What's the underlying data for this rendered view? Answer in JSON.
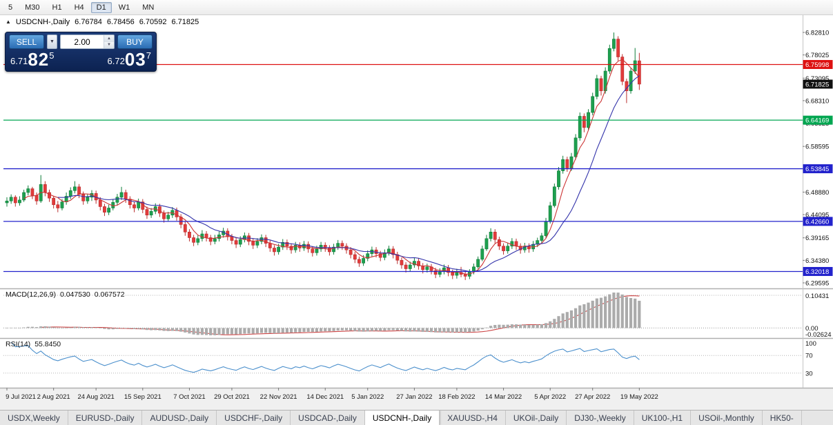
{
  "toolbar": {
    "timeframes": [
      {
        "label": "5"
      },
      {
        "label": "M30"
      },
      {
        "label": "H1"
      },
      {
        "label": "H4"
      },
      {
        "label": "D1"
      },
      {
        "label": "W1"
      },
      {
        "label": "MN"
      }
    ],
    "active": "D1"
  },
  "icons": {
    "collapse": "▲",
    "dropdown": "▼",
    "spin_up": "▲",
    "spin_down": "▼"
  },
  "chart": {
    "symbol_header": "USDCNH-,Daily",
    "ohlc": {
      "open": "6.76784",
      "high": "6.78456",
      "low": "6.70592",
      "close": "6.71825"
    },
    "scale_top": 6.8281,
    "scale_bottom": 6.29595,
    "price_axis": [
      "6.82810",
      "6.78025",
      "6.73095",
      "6.68310",
      "6.63525",
      "6.58595",
      "6.53810",
      "6.48880",
      "6.44095",
      "6.39165",
      "6.34380",
      "6.29595"
    ],
    "lines": [
      {
        "price": 6.75998,
        "label": "6.75998",
        "color": "#dd1111",
        "draw_line": true
      },
      {
        "price": 6.71825,
        "label": "6.71825",
        "color": "#111111",
        "draw_line": false
      },
      {
        "price": 6.64169,
        "label": "6.64169",
        "color": "#00a650",
        "draw_line": true
      },
      {
        "price": 6.53845,
        "label": "6.53845",
        "color": "#2222cc",
        "draw_line": true
      },
      {
        "price": 6.4266,
        "label": "6.42660",
        "color": "#2222cc",
        "draw_line": true
      },
      {
        "price": 6.32018,
        "label": "6.32018",
        "color": "#2222cc",
        "draw_line": true
      }
    ],
    "dates": [
      "9 Jul 2021",
      "2 Aug 2021",
      "24 Aug 2021",
      "15 Sep 2021",
      "7 Oct 2021",
      "29 Oct 2021",
      "22 Nov 2021",
      "14 Dec 2021",
      "5 Jan 2022",
      "27 Jan 2022",
      "18 Feb 2022",
      "14 Mar 2022",
      "5 Apr 2022",
      "27 Apr 2022",
      "19 May 2022"
    ]
  },
  "trade_panel": {
    "sell_label": "SELL",
    "buy_label": "BUY",
    "volume": "2.00",
    "sell_price": {
      "prefix": "6.71",
      "big": "82",
      "sup": "5"
    },
    "buy_price": {
      "prefix": "6.72",
      "big": "03",
      "sup": "7"
    }
  },
  "indicators": {
    "macd": {
      "label": "MACD(12,26,9)",
      "value1": "0.047530",
      "value2": "0.067572",
      "axis": [
        "0.10431",
        "0.00",
        "-0.02624"
      ],
      "max": 0.104313,
      "min": -0.026249
    },
    "rsi": {
      "label": "RSI(14)",
      "value": "55.8450",
      "axis": [
        "100",
        "70",
        "30"
      ],
      "levels": [
        70,
        30
      ]
    }
  },
  "tabs": [
    {
      "label": "USDX,Weekly"
    },
    {
      "label": "EURUSD-,Daily"
    },
    {
      "label": "AUDUSD-,Daily"
    },
    {
      "label": "USDCHF-,Daily"
    },
    {
      "label": "USDCAD-,Daily"
    },
    {
      "label": "USDCNH-,Daily",
      "active": true
    },
    {
      "label": "XAUUSD-,H4"
    },
    {
      "label": "UKOil-,Daily"
    },
    {
      "label": "DJ30-,Weekly"
    },
    {
      "label": "UK100-,H1"
    },
    {
      "label": "USOil-,Monthly"
    },
    {
      "label": "HK50-"
    }
  ],
  "chart_data": {
    "type": "candlestick",
    "symbol": "USDCNH-",
    "timeframe": "Daily",
    "x_labels": [
      "9 Jul 2021",
      "2 Aug 2021",
      "24 Aug 2021",
      "15 Sep 2021",
      "7 Oct 2021",
      "29 Oct 2021",
      "22 Nov 2021",
      "14 Dec 2021",
      "5 Jan 2022",
      "27 Jan 2022",
      "18 Feb 2022",
      "14 Mar 2022",
      "5 Apr 2022",
      "27 Apr 2022",
      "19 May 2022"
    ],
    "ylim": [
      6.29595,
      6.8281
    ],
    "overlays": [
      {
        "name": "ma-fast",
        "type": "sma",
        "period": 5,
        "color": "#cc3333"
      },
      {
        "name": "ma-slow",
        "type": "sma",
        "period": 13,
        "color": "#3333aa"
      }
    ],
    "candles": [
      [
        6.466,
        6.478,
        6.458,
        6.47
      ],
      [
        6.47,
        6.484,
        6.464,
        6.478
      ],
      [
        6.478,
        6.482,
        6.458,
        6.466
      ],
      [
        6.466,
        6.48,
        6.46,
        6.472
      ],
      [
        6.472,
        6.494,
        6.468,
        6.488
      ],
      [
        6.488,
        6.503,
        6.482,
        6.496
      ],
      [
        6.496,
        6.5,
        6.474,
        6.482
      ],
      [
        6.482,
        6.488,
        6.462,
        6.47
      ],
      [
        6.47,
        6.525,
        6.466,
        6.505
      ],
      [
        6.505,
        6.512,
        6.48,
        6.488
      ],
      [
        6.488,
        6.494,
        6.468,
        6.476
      ],
      [
        6.476,
        6.48,
        6.454,
        6.462
      ],
      [
        6.462,
        6.47,
        6.446,
        6.455
      ],
      [
        6.455,
        6.474,
        6.45,
        6.468
      ],
      [
        6.468,
        6.488,
        6.462,
        6.48
      ],
      [
        6.48,
        6.499,
        6.474,
        6.492
      ],
      [
        6.492,
        6.512,
        6.486,
        6.5
      ],
      [
        6.5,
        6.506,
        6.476,
        6.484
      ],
      [
        6.484,
        6.49,
        6.462,
        6.47
      ],
      [
        6.47,
        6.485,
        6.464,
        6.478
      ],
      [
        6.478,
        6.493,
        6.47,
        6.486
      ],
      [
        6.486,
        6.492,
        6.464,
        6.472
      ],
      [
        6.472,
        6.478,
        6.45,
        6.458
      ],
      [
        6.458,
        6.464,
        6.438,
        6.446
      ],
      [
        6.446,
        6.462,
        6.44,
        6.455
      ],
      [
        6.455,
        6.474,
        6.45,
        6.467
      ],
      [
        6.467,
        6.485,
        6.461,
        6.478
      ],
      [
        6.478,
        6.5,
        6.472,
        6.488
      ],
      [
        6.488,
        6.494,
        6.466,
        6.474
      ],
      [
        6.474,
        6.48,
        6.454,
        6.462
      ],
      [
        6.462,
        6.468,
        6.446,
        6.455
      ],
      [
        6.455,
        6.475,
        6.45,
        6.468
      ],
      [
        6.468,
        6.474,
        6.444,
        6.452
      ],
      [
        6.452,
        6.458,
        6.432,
        6.44
      ],
      [
        6.44,
        6.455,
        6.434,
        6.448
      ],
      [
        6.448,
        6.465,
        6.442,
        6.458
      ],
      [
        6.458,
        6.464,
        6.436,
        6.444
      ],
      [
        6.444,
        6.45,
        6.424,
        6.432
      ],
      [
        6.432,
        6.447,
        6.426,
        6.44
      ],
      [
        6.44,
        6.457,
        6.434,
        6.45
      ],
      [
        6.45,
        6.456,
        6.428,
        6.436
      ],
      [
        6.436,
        6.442,
        6.412,
        6.42
      ],
      [
        6.42,
        6.426,
        6.396,
        6.404
      ],
      [
        6.404,
        6.41,
        6.384,
        6.392
      ],
      [
        6.392,
        6.398,
        6.374,
        6.382
      ],
      [
        6.382,
        6.397,
        6.376,
        6.39
      ],
      [
        6.39,
        6.408,
        6.384,
        6.4
      ],
      [
        6.4,
        6.406,
        6.384,
        6.392
      ],
      [
        6.392,
        6.398,
        6.376,
        6.384
      ],
      [
        6.384,
        6.398,
        6.378,
        6.39
      ],
      [
        6.39,
        6.405,
        6.384,
        6.398
      ],
      [
        6.398,
        6.413,
        6.392,
        6.406
      ],
      [
        6.406,
        6.412,
        6.386,
        6.394
      ],
      [
        6.394,
        6.4,
        6.378,
        6.386
      ],
      [
        6.386,
        6.392,
        6.37,
        6.378
      ],
      [
        6.378,
        6.395,
        6.372,
        6.388
      ],
      [
        6.388,
        6.403,
        6.382,
        6.396
      ],
      [
        6.396,
        6.402,
        6.376,
        6.384
      ],
      [
        6.384,
        6.39,
        6.368,
        6.376
      ],
      [
        6.376,
        6.391,
        6.37,
        6.384
      ],
      [
        6.384,
        6.399,
        6.378,
        6.392
      ],
      [
        6.392,
        6.398,
        6.372,
        6.38
      ],
      [
        6.38,
        6.386,
        6.362,
        6.37
      ],
      [
        6.37,
        6.376,
        6.354,
        6.362
      ],
      [
        6.362,
        6.379,
        6.356,
        6.372
      ],
      [
        6.372,
        6.389,
        6.366,
        6.382
      ],
      [
        6.382,
        6.388,
        6.366,
        6.374
      ],
      [
        6.374,
        6.38,
        6.358,
        6.366
      ],
      [
        6.366,
        6.383,
        6.36,
        6.376
      ],
      [
        6.376,
        6.382,
        6.362,
        6.37
      ],
      [
        6.37,
        6.385,
        6.364,
        6.378
      ],
      [
        6.378,
        6.384,
        6.36,
        6.368
      ],
      [
        6.368,
        6.374,
        6.352,
        6.36
      ],
      [
        6.36,
        6.375,
        6.354,
        6.368
      ],
      [
        6.368,
        6.383,
        6.362,
        6.376
      ],
      [
        6.376,
        6.382,
        6.362,
        6.37
      ],
      [
        6.37,
        6.376,
        6.354,
        6.362
      ],
      [
        6.362,
        6.379,
        6.356,
        6.372
      ],
      [
        6.372,
        6.387,
        6.366,
        6.38
      ],
      [
        6.38,
        6.386,
        6.366,
        6.374
      ],
      [
        6.374,
        6.38,
        6.358,
        6.366
      ],
      [
        6.366,
        6.372,
        6.348,
        6.356
      ],
      [
        6.356,
        6.362,
        6.338,
        6.346
      ],
      [
        6.346,
        6.352,
        6.33,
        6.338
      ],
      [
        6.338,
        6.355,
        6.332,
        6.348
      ],
      [
        6.348,
        6.365,
        6.342,
        6.358
      ],
      [
        6.358,
        6.373,
        6.352,
        6.366
      ],
      [
        6.366,
        6.372,
        6.35,
        6.358
      ],
      [
        6.358,
        6.364,
        6.342,
        6.35
      ],
      [
        6.35,
        6.367,
        6.344,
        6.36
      ],
      [
        6.36,
        6.375,
        6.354,
        6.368
      ],
      [
        6.368,
        6.374,
        6.348,
        6.356
      ],
      [
        6.356,
        6.362,
        6.336,
        6.344
      ],
      [
        6.344,
        6.35,
        6.326,
        6.334
      ],
      [
        6.334,
        6.34,
        6.318,
        6.326
      ],
      [
        6.326,
        6.341,
        6.32,
        6.334
      ],
      [
        6.334,
        6.349,
        6.328,
        6.342
      ],
      [
        6.342,
        6.348,
        6.324,
        6.332
      ],
      [
        6.332,
        6.338,
        6.316,
        6.324
      ],
      [
        6.324,
        6.337,
        6.318,
        6.33
      ],
      [
        6.33,
        6.336,
        6.314,
        6.322
      ],
      [
        6.322,
        6.328,
        6.306,
        6.314
      ],
      [
        6.314,
        6.327,
        6.308,
        6.32
      ],
      [
        6.32,
        6.335,
        6.314,
        6.328
      ],
      [
        6.328,
        6.334,
        6.31,
        6.318
      ],
      [
        6.318,
        6.324,
        6.304,
        6.312
      ],
      [
        6.312,
        6.326,
        6.305,
        6.318
      ],
      [
        6.318,
        6.33,
        6.308,
        6.314
      ],
      [
        6.314,
        6.322,
        6.302,
        6.31
      ],
      [
        6.31,
        6.325,
        6.304,
        6.32
      ],
      [
        6.32,
        6.337,
        6.314,
        6.33
      ],
      [
        6.33,
        6.352,
        6.326,
        6.346
      ],
      [
        6.346,
        6.375,
        6.342,
        6.368
      ],
      [
        6.368,
        6.398,
        6.364,
        6.39
      ],
      [
        6.39,
        6.412,
        6.384,
        6.404
      ],
      [
        6.404,
        6.41,
        6.38,
        6.388
      ],
      [
        6.388,
        6.394,
        6.366,
        6.374
      ],
      [
        6.374,
        6.38,
        6.356,
        6.364
      ],
      [
        6.364,
        6.381,
        6.358,
        6.374
      ],
      [
        6.374,
        6.391,
        6.368,
        6.384
      ],
      [
        6.384,
        6.39,
        6.366,
        6.374
      ],
      [
        6.374,
        6.38,
        6.358,
        6.366
      ],
      [
        6.366,
        6.381,
        6.36,
        6.374
      ],
      [
        6.374,
        6.38,
        6.36,
        6.368
      ],
      [
        6.368,
        6.385,
        6.362,
        6.378
      ],
      [
        6.378,
        6.392,
        6.372,
        6.386
      ],
      [
        6.386,
        6.402,
        6.38,
        6.396
      ],
      [
        6.396,
        6.434,
        6.392,
        6.426
      ],
      [
        6.426,
        6.468,
        6.422,
        6.46
      ],
      [
        6.46,
        6.507,
        6.456,
        6.5
      ],
      [
        6.5,
        6.542,
        6.494,
        6.534
      ],
      [
        6.534,
        6.566,
        6.528,
        6.558
      ],
      [
        6.558,
        6.564,
        6.532,
        6.54
      ],
      [
        6.54,
        6.572,
        6.534,
        6.564
      ],
      [
        6.564,
        6.612,
        6.558,
        6.604
      ],
      [
        6.604,
        6.658,
        6.598,
        6.65
      ],
      [
        6.65,
        6.656,
        6.616,
        6.626
      ],
      [
        6.626,
        6.665,
        6.62,
        6.658
      ],
      [
        6.658,
        6.7,
        6.652,
        6.692
      ],
      [
        6.692,
        6.738,
        6.686,
        6.73
      ],
      [
        6.73,
        6.736,
        6.694,
        6.704
      ],
      [
        6.704,
        6.754,
        6.698,
        6.746
      ],
      [
        6.746,
        6.802,
        6.74,
        6.794
      ],
      [
        6.794,
        6.828,
        6.788,
        6.814
      ],
      [
        6.814,
        6.82,
        6.768,
        6.776
      ],
      [
        6.776,
        6.782,
        6.716,
        6.724
      ],
      [
        6.724,
        6.73,
        6.678,
        6.704
      ],
      [
        6.704,
        6.752,
        6.698,
        6.746
      ],
      [
        6.746,
        6.795,
        6.74,
        6.768
      ],
      [
        6.76784,
        6.78456,
        6.70592,
        6.71825
      ]
    ]
  }
}
